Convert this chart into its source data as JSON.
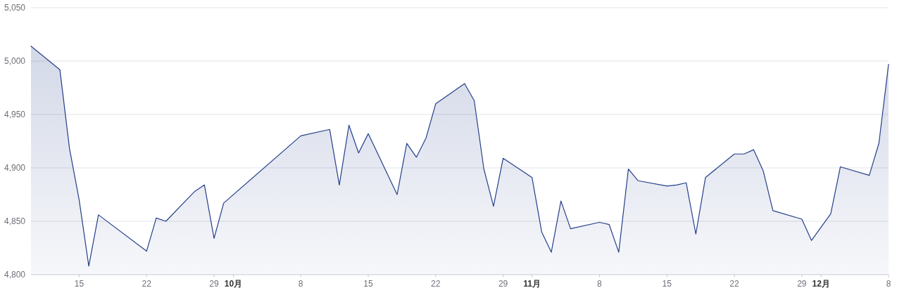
{
  "chart_data": {
    "type": "area",
    "x": [
      "--09-10",
      "--09-13",
      "--09-14",
      "--09-15",
      "--09-16",
      "--09-17",
      "--09-22",
      "--09-23",
      "--09-24",
      "--09-27",
      "--09-28",
      "--09-29",
      "--09-30",
      "--10-08",
      "--10-11",
      "--10-12",
      "--10-13",
      "--10-14",
      "--10-15",
      "--10-18",
      "--10-19",
      "--10-20",
      "--10-21",
      "--10-22",
      "--10-25",
      "--10-26",
      "--10-27",
      "--10-28",
      "--10-29",
      "--11-01",
      "--11-02",
      "--11-03",
      "--11-04",
      "--11-05",
      "--11-08",
      "--11-09",
      "--11-10",
      "--11-11",
      "--11-12",
      "--11-15",
      "--11-16",
      "--11-17",
      "--11-18",
      "--11-19",
      "--11-22",
      "--11-23",
      "--11-24",
      "--11-25",
      "--11-26",
      "--11-29",
      "--11-30",
      "--12-02",
      "--12-03",
      "--12-06",
      "--12-07",
      "--12-08"
    ],
    "values": [
      5014,
      4992,
      4918,
      4870,
      4808,
      4856,
      4822,
      4853,
      4850,
      4878,
      4884,
      4834,
      4867,
      4930,
      4936,
      4884,
      4940,
      4914,
      4932,
      4875,
      4923,
      4910,
      4928,
      4960,
      4979,
      4963,
      4899,
      4864,
      4909,
      4891,
      4840,
      4821,
      4869,
      4843,
      4849,
      4847,
      4821,
      4899,
      4888,
      4883,
      4884,
      4886,
      4838,
      4891,
      4913,
      4913,
      4917,
      4897,
      4860,
      4852,
      4832,
      4857,
      4901,
      4893,
      4923,
      4997
    ],
    "color": "#253f8a",
    "xlim": [
      "--09-10",
      "--12-08"
    ],
    "xticks": [
      {
        "value": "--09-15",
        "label": "15"
      },
      {
        "value": "--09-22",
        "label": "22"
      },
      {
        "value": "--09-29",
        "label": "29"
      },
      {
        "value": "--10-01",
        "label": "10月"
      },
      {
        "value": "--10-08",
        "label": "8"
      },
      {
        "value": "--10-15",
        "label": "15"
      },
      {
        "value": "--10-22",
        "label": "22"
      },
      {
        "value": "--10-29",
        "label": "29"
      },
      {
        "value": "--11-01",
        "label": "11月"
      },
      {
        "value": "--11-08",
        "label": "8"
      },
      {
        "value": "--11-15",
        "label": "15"
      },
      {
        "value": "--11-22",
        "label": "22"
      },
      {
        "value": "--11-29",
        "label": "29"
      },
      {
        "value": "--12-01",
        "label": "12月"
      },
      {
        "value": "--12-08",
        "label": "8"
      }
    ],
    "ylim": [
      4800,
      5050
    ],
    "yticks": [
      {
        "value": 4800,
        "label": "4,800"
      },
      {
        "value": 4850,
        "label": "4,850"
      },
      {
        "value": 4900,
        "label": "4,900"
      },
      {
        "value": 4950,
        "label": "4,950"
      },
      {
        "value": 5000,
        "label": "5,000"
      },
      {
        "value": 5050,
        "label": "5,050"
      }
    ],
    "grid": "y"
  }
}
